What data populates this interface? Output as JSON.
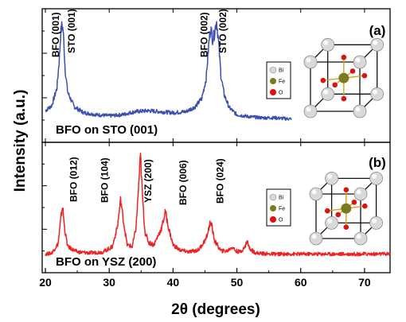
{
  "chart_data": {
    "type": "line",
    "xlabel": "2θ (degrees)",
    "ylabel": "Intensity (a.u.)",
    "xlim": [
      19.5,
      74
    ],
    "x_ticks": [
      "20",
      "30",
      "40",
      "50",
      "60",
      "70"
    ],
    "x_tick_values": [
      20,
      30,
      40,
      50,
      60,
      70
    ],
    "grid": false,
    "panels": [
      {
        "tag": "(a)",
        "caption": "BFO on STO (001)",
        "color": "#3a4fb0",
        "x_range": [
          20,
          58.5
        ],
        "series": {
          "x": [
            20,
            21,
            21.8,
            22.2,
            22.4,
            22.6,
            22.8,
            23.1,
            23.5,
            24.5,
            26,
            28,
            30,
            32,
            34,
            36,
            38,
            40,
            42,
            43.5,
            44.5,
            45.2,
            45.6,
            45.9,
            46.2,
            46.5,
            46.8,
            47.1,
            47.5,
            48,
            48.8,
            50,
            52,
            54,
            56,
            58,
            58.5
          ],
          "y": [
            0.1,
            0.15,
            0.32,
            0.62,
            0.86,
            0.95,
            0.88,
            0.5,
            0.28,
            0.14,
            0.08,
            0.06,
            0.05,
            0.06,
            0.09,
            0.1,
            0.09,
            0.08,
            0.09,
            0.14,
            0.22,
            0.42,
            0.76,
            0.92,
            0.8,
            0.86,
            0.99,
            0.8,
            0.45,
            0.26,
            0.13,
            0.06,
            0.04,
            0.03,
            0.03,
            0.02,
            0.02
          ]
        },
        "peak_labels": [
          {
            "text": "BFO (001)",
            "x": 22.1
          },
          {
            "text": "STO (001)",
            "x": 24.6
          },
          {
            "text": "BFO (002)",
            "x": 45.4
          },
          {
            "text": "STO (002)",
            "x": 48.3
          }
        ],
        "legend": [
          {
            "label": "Bi",
            "color": "#d8d8d8"
          },
          {
            "label": "Fe",
            "color": "#7c7a1e"
          },
          {
            "label": "O",
            "color": "#dd1111"
          }
        ]
      },
      {
        "tag": "(b)",
        "caption": "BFO on YSZ (200)",
        "color": "#ee2222",
        "x_range": [
          20,
          74
        ],
        "series": {
          "x": [
            20,
            21,
            22,
            22.4,
            22.7,
            23,
            23.5,
            25,
            27,
            29,
            30.5,
            31.3,
            31.8,
            32.2,
            32.8,
            33.6,
            34.2,
            34.6,
            34.9,
            35.2,
            35.6,
            36.2,
            37,
            38.2,
            38.8,
            39.3,
            40,
            41,
            42.5,
            44,
            45.2,
            45.9,
            46.5,
            47.5,
            48.5,
            49.3,
            49.8,
            50.5,
            51.2,
            51.6,
            52,
            53,
            55,
            58,
            61,
            64,
            67,
            70,
            73,
            74
          ],
          "y": [
            0.05,
            0.06,
            0.15,
            0.38,
            0.52,
            0.3,
            0.12,
            0.07,
            0.06,
            0.07,
            0.12,
            0.32,
            0.58,
            0.38,
            0.14,
            0.12,
            0.3,
            0.7,
            1.0,
            0.62,
            0.26,
            0.16,
            0.14,
            0.3,
            0.46,
            0.3,
            0.14,
            0.09,
            0.07,
            0.09,
            0.2,
            0.37,
            0.18,
            0.08,
            0.08,
            0.12,
            0.08,
            0.07,
            0.11,
            0.18,
            0.1,
            0.06,
            0.05,
            0.05,
            0.05,
            0.05,
            0.05,
            0.05,
            0.05,
            0.05
          ]
        },
        "peak_labels": [
          {
            "text": "BFO (012)",
            "x": 24.9
          },
          {
            "text": "BFO (104)",
            "x": 29.8
          },
          {
            "text": "YSZ (200)",
            "x": 36.6
          },
          {
            "text": "BFO (006)",
            "x": 42.1
          },
          {
            "text": "BFO (024)",
            "x": 47.9
          }
        ],
        "legend": [
          {
            "label": "Bi",
            "color": "#d8d8d8"
          },
          {
            "label": "Fe",
            "color": "#7c7a1e"
          },
          {
            "label": "O",
            "color": "#dd1111"
          }
        ]
      }
    ]
  }
}
